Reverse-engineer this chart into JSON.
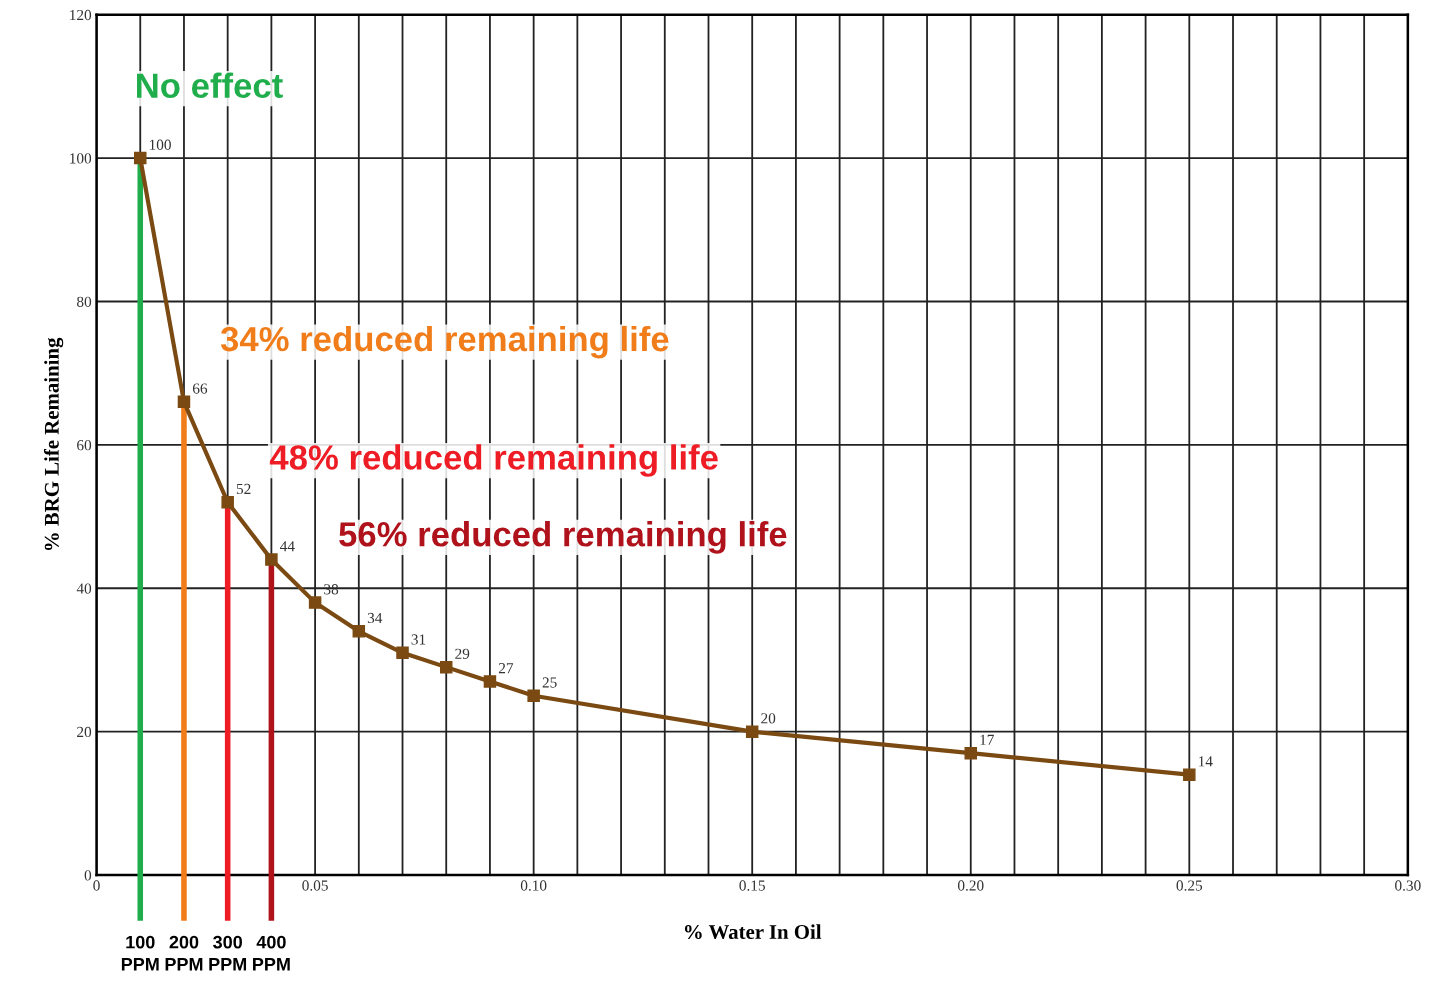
{
  "chart_data": {
    "type": "line",
    "xlabel": "% Water In Oil",
    "ylabel": "% BRG Life Remaining",
    "x": [
      0.01,
      0.02,
      0.03,
      0.04,
      0.05,
      0.06,
      0.07,
      0.08,
      0.09,
      0.1,
      0.15,
      0.2,
      0.25
    ],
    "series": [
      {
        "color": "#7b4a12",
        "values": [
          100,
          66,
          52,
          44,
          38,
          34,
          31,
          29,
          27,
          25,
          20,
          17,
          14
        ]
      }
    ],
    "data_labels": true,
    "marker": "square",
    "line_style": "solid",
    "grid": true,
    "xlim": [
      0,
      0.3
    ],
    "ylim": [
      0,
      120
    ],
    "xticks": [
      {
        "value": 0,
        "label": "0"
      },
      {
        "value": 0.01,
        "label": null
      },
      {
        "value": 0.02,
        "label": null
      },
      {
        "value": 0.03,
        "label": null
      },
      {
        "value": 0.04,
        "label": null
      },
      {
        "value": 0.05,
        "label": "0.05"
      },
      {
        "value": 0.06,
        "label": null
      },
      {
        "value": 0.07,
        "label": null
      },
      {
        "value": 0.08,
        "label": null
      },
      {
        "value": 0.09,
        "label": null
      },
      {
        "value": 0.1,
        "label": "0.10"
      },
      {
        "value": 0.11,
        "label": null
      },
      {
        "value": 0.12,
        "label": null
      },
      {
        "value": 0.13,
        "label": null
      },
      {
        "value": 0.14,
        "label": null
      },
      {
        "value": 0.15,
        "label": "0.15"
      },
      {
        "value": 0.16,
        "label": null
      },
      {
        "value": 0.17,
        "label": null
      },
      {
        "value": 0.18,
        "label": null
      },
      {
        "value": 0.19,
        "label": null
      },
      {
        "value": 0.2,
        "label": "0.20"
      },
      {
        "value": 0.21,
        "label": null
      },
      {
        "value": 0.22,
        "label": null
      },
      {
        "value": 0.23,
        "label": null
      },
      {
        "value": 0.24,
        "label": null
      },
      {
        "value": 0.25,
        "label": "0.25"
      },
      {
        "value": 0.26,
        "label": null
      },
      {
        "value": 0.27,
        "label": null
      },
      {
        "value": 0.28,
        "label": null
      },
      {
        "value": 0.29,
        "label": null
      },
      {
        "value": 0.3,
        "label": "0.30"
      }
    ],
    "yticks": [
      0,
      20,
      40,
      60,
      80,
      100,
      120
    ],
    "ref_lines": [
      {
        "axis": "x",
        "value": 0.01,
        "label": "100\nPPM",
        "color": "#1fae4b"
      },
      {
        "axis": "x",
        "value": 0.02,
        "label": "200\nPPM",
        "color": "#f07d1a"
      },
      {
        "axis": "x",
        "value": 0.03,
        "label": "300\nPPM",
        "color": "#ee1c24"
      },
      {
        "axis": "x",
        "value": 0.04,
        "label": "400\nPPM",
        "color": "#b0121b"
      }
    ],
    "annotations": [
      "No effect",
      "34% reduced remaining life",
      "48% reduced remaining life",
      "56% reduced remaining life"
    ]
  }
}
